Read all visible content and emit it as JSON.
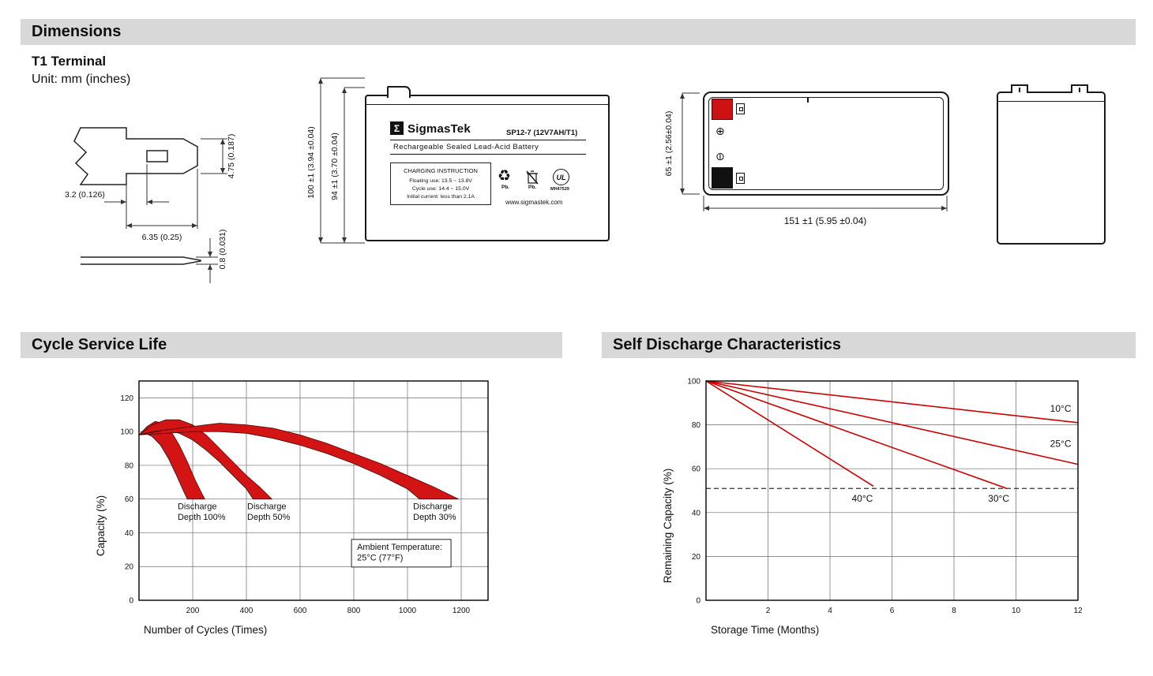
{
  "header": {
    "dimensions_title": "Dimensions",
    "cycle_title": "Cycle Service Life",
    "self_discharge_title": "Self Discharge Characteristics"
  },
  "terminal_section": {
    "title": "T1 Terminal",
    "unit": "Unit: mm (inches)",
    "dim_height": "4.75 (0.187)",
    "dim_offset": "3.2 (0.126)",
    "dim_width": "6.35 (0.25)",
    "dim_thickness": "0.8 (0.031)"
  },
  "front_view": {
    "dim_total_height": "100 ±1 (3.94 ±0.04)",
    "dim_body_height": "94 ±1 (3.70 ±0.04)",
    "label": {
      "logo_glyph": "Σ",
      "brand": "SigmasTek",
      "model": "SP12-7 (12V7AH/T1)",
      "type_line": "Rechargeable Sealed Lead-Acid Battery",
      "charging_title": "CHARGING INSTRUCTION",
      "charging_line1": "Floating use: 13.5 ~ 13.8V",
      "charging_line2": "Cycle use: 14.4 ~ 15.0V",
      "charging_line3": "Initial current: less than 2.1A",
      "recycle_glyph": "♻",
      "recycle_pb": "Pb.",
      "trash_pb": "Pb.",
      "ul_text": "UL",
      "ul_code": "MH47529",
      "website": "www.sigmastek.com"
    }
  },
  "top_view": {
    "dim_height": "65 ±1 (2.56±0.04)",
    "dim_width": "151 ±1 (5.95 ±0.04)",
    "plus_glyph": "⊕",
    "minus_glyph": "⊖"
  },
  "colors": {
    "banner_gray": "#d8d8d8",
    "chart_red": "#cc0000",
    "terminal_red": "#cc1212"
  },
  "chart_data": [
    {
      "type": "area",
      "title": "Cycle Service Life",
      "xlabel": "Number of Cycles (Times)",
      "ylabel": "Capacity (%)",
      "xlim": [
        0,
        1300
      ],
      "ylim": [
        0,
        130
      ],
      "xticks": [
        200,
        400,
        600,
        800,
        1000,
        1200
      ],
      "yticks": [
        0,
        20,
        40,
        60,
        80,
        100,
        120
      ],
      "grid": true,
      "legend_position": "none",
      "fill_color": "#d21414",
      "edge_color": "#4a0a0a",
      "series": [
        {
          "name": "Discharge Depth 100%",
          "upper": [
            [
              0,
              98
            ],
            [
              30,
              103
            ],
            [
              60,
              106
            ],
            [
              90,
              105
            ],
            [
              120,
              100
            ],
            [
              150,
              92
            ],
            [
              180,
              82
            ],
            [
              210,
              71
            ],
            [
              235,
              63
            ],
            [
              245,
              60
            ]
          ],
          "lower": [
            [
              0,
              98
            ],
            [
              25,
              99
            ],
            [
              50,
              97
            ],
            [
              80,
              92
            ],
            [
              110,
              84
            ],
            [
              140,
              74
            ],
            [
              165,
              65
            ],
            [
              180,
              60
            ]
          ]
        },
        {
          "name": "Discharge Depth 50%",
          "upper": [
            [
              0,
              98
            ],
            [
              50,
              104
            ],
            [
              100,
              107
            ],
            [
              150,
              107
            ],
            [
              200,
              104
            ],
            [
              250,
              98
            ],
            [
              300,
              90
            ],
            [
              350,
              82
            ],
            [
              400,
              74
            ],
            [
              450,
              67
            ],
            [
              495,
              60
            ]
          ],
          "lower": [
            [
              0,
              98
            ],
            [
              50,
              100
            ],
            [
              100,
              101
            ],
            [
              150,
              99
            ],
            [
              200,
              95
            ],
            [
              250,
              89
            ],
            [
              300,
              82
            ],
            [
              350,
              74
            ],
            [
              400,
              66
            ],
            [
              425,
              60
            ]
          ]
        },
        {
          "name": "Discharge Depth 30%",
          "upper": [
            [
              0,
              98
            ],
            [
              100,
              101
            ],
            [
              200,
              103
            ],
            [
              300,
              105
            ],
            [
              400,
              104
            ],
            [
              500,
              102
            ],
            [
              600,
              98
            ],
            [
              700,
              93
            ],
            [
              800,
              87
            ],
            [
              900,
              81
            ],
            [
              1000,
              74
            ],
            [
              1100,
              67
            ],
            [
              1190,
              60
            ]
          ],
          "lower": [
            [
              0,
              98
            ],
            [
              100,
              99
            ],
            [
              200,
              100
            ],
            [
              300,
              100
            ],
            [
              400,
              99
            ],
            [
              500,
              96
            ],
            [
              600,
              92
            ],
            [
              700,
              87
            ],
            [
              800,
              81
            ],
            [
              900,
              74
            ],
            [
              1000,
              66
            ],
            [
              1045,
              60
            ]
          ]
        }
      ],
      "annotations": [
        {
          "lines": [
            "Discharge",
            "Depth 100%"
          ],
          "x": 144,
          "y": 54
        },
        {
          "lines": [
            "Discharge",
            "Depth 50%"
          ],
          "x": 403,
          "y": 54
        },
        {
          "lines": [
            "Discharge",
            "Depth 30%"
          ],
          "x": 1021,
          "y": 54
        },
        {
          "lines": [
            "Ambient Temperature:",
            "25°C (77°F)"
          ],
          "x": 812,
          "y": 30,
          "box": true
        }
      ]
    },
    {
      "type": "line",
      "title": "Self Discharge Characteristics",
      "xlabel": "Storage Time (Months)",
      "ylabel": "Remaining Capacity (%)",
      "xlim": [
        0,
        12
      ],
      "ylim": [
        0,
        100
      ],
      "xticks": [
        2,
        4,
        6,
        8,
        10,
        12
      ],
      "yticks": [
        0,
        20,
        40,
        60,
        80,
        100
      ],
      "grid": true,
      "legend_position": "inline-labels",
      "line_color": "#cc0000",
      "series": [
        {
          "name": "10°C",
          "points": [
            [
              0,
              100
            ],
            [
              12,
              81
            ]
          ],
          "label_at": [
            11.1,
            86
          ]
        },
        {
          "name": "25°C",
          "points": [
            [
              0,
              100
            ],
            [
              12,
              62
            ]
          ],
          "label_at": [
            11.1,
            70
          ]
        },
        {
          "name": "30°C",
          "points": [
            [
              0,
              100
            ],
            [
              9.7,
              51
            ]
          ],
          "label_at": [
            9.1,
            45
          ]
        },
        {
          "name": "40°C",
          "points": [
            [
              0,
              100
            ],
            [
              5.4,
              52
            ]
          ],
          "label_at": [
            4.7,
            45
          ]
        }
      ],
      "dashed_line_y": 51
    }
  ]
}
